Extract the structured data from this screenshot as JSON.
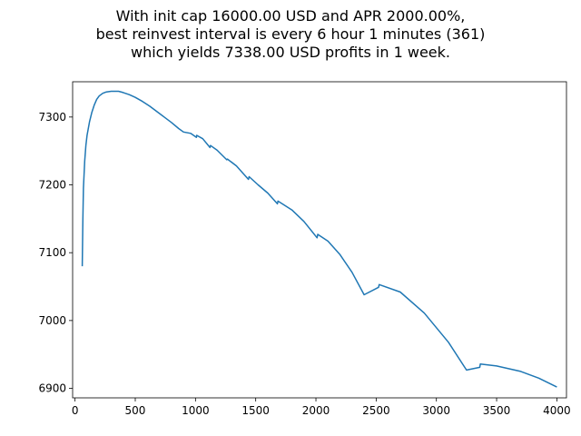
{
  "chart_data": {
    "type": "line",
    "title": [
      "With init cap 16000.00 USD and APR 2000.00%,",
      "best reinvest interval is every 6 hour 1 minutes (361)",
      "which yields 7338.00 USD profits in 1 week."
    ],
    "xlabel": "",
    "ylabel": "",
    "xlim": [
      -20,
      4080
    ],
    "ylim": [
      6886,
      7352
    ],
    "xticks": [
      0,
      500,
      1000,
      1500,
      2000,
      2500,
      3000,
      3500,
      4000
    ],
    "xtick_labels": [
      "0",
      "500",
      "1000",
      "1500",
      "2000",
      "2500",
      "3000",
      "3500",
      "4000"
    ],
    "yticks": [
      6900,
      7000,
      7100,
      7200,
      7300
    ],
    "ytick_labels": [
      "6900",
      "7000",
      "7100",
      "7200",
      "7300"
    ],
    "grid": false,
    "color": "#1f77b4",
    "series": [
      {
        "x": [
          60,
          65,
          70,
          80,
          90,
          100,
          120,
          140,
          160,
          180,
          200,
          230,
          260,
          300,
          340,
          361,
          400,
          450,
          500,
          560,
          620,
          680,
          740,
          800,
          860,
          900,
          960,
          1008,
          1010,
          1060,
          1120,
          1125,
          1180,
          1260,
          1265,
          1340,
          1440,
          1445,
          1520,
          1600,
          1680,
          1685,
          1800,
          1900,
          2010,
          2015,
          2100,
          2200,
          2300,
          2400,
          2520,
          2525,
          2700,
          2900,
          3100,
          3250,
          3360,
          3365,
          3500,
          3700,
          3850,
          4000
        ],
        "y": [
          7080,
          7150,
          7195,
          7235,
          7258,
          7273,
          7293,
          7307,
          7318,
          7326,
          7331,
          7335,
          7337,
          7338,
          7338,
          7338,
          7336,
          7333,
          7329,
          7323,
          7316,
          7308,
          7300,
          7292,
          7283,
          7278,
          7276,
          7270,
          7273,
          7268,
          7255,
          7258,
          7251,
          7237,
          7238,
          7228,
          7208,
          7212,
          7200,
          7188,
          7172,
          7176,
          7163,
          7146,
          7122,
          7127,
          7117,
          7097,
          7071,
          7038,
          7049,
          7053,
          7042,
          7011,
          6968,
          6927,
          6931,
          6936,
          6933,
          6925,
          6915,
          6902
        ]
      }
    ]
  }
}
